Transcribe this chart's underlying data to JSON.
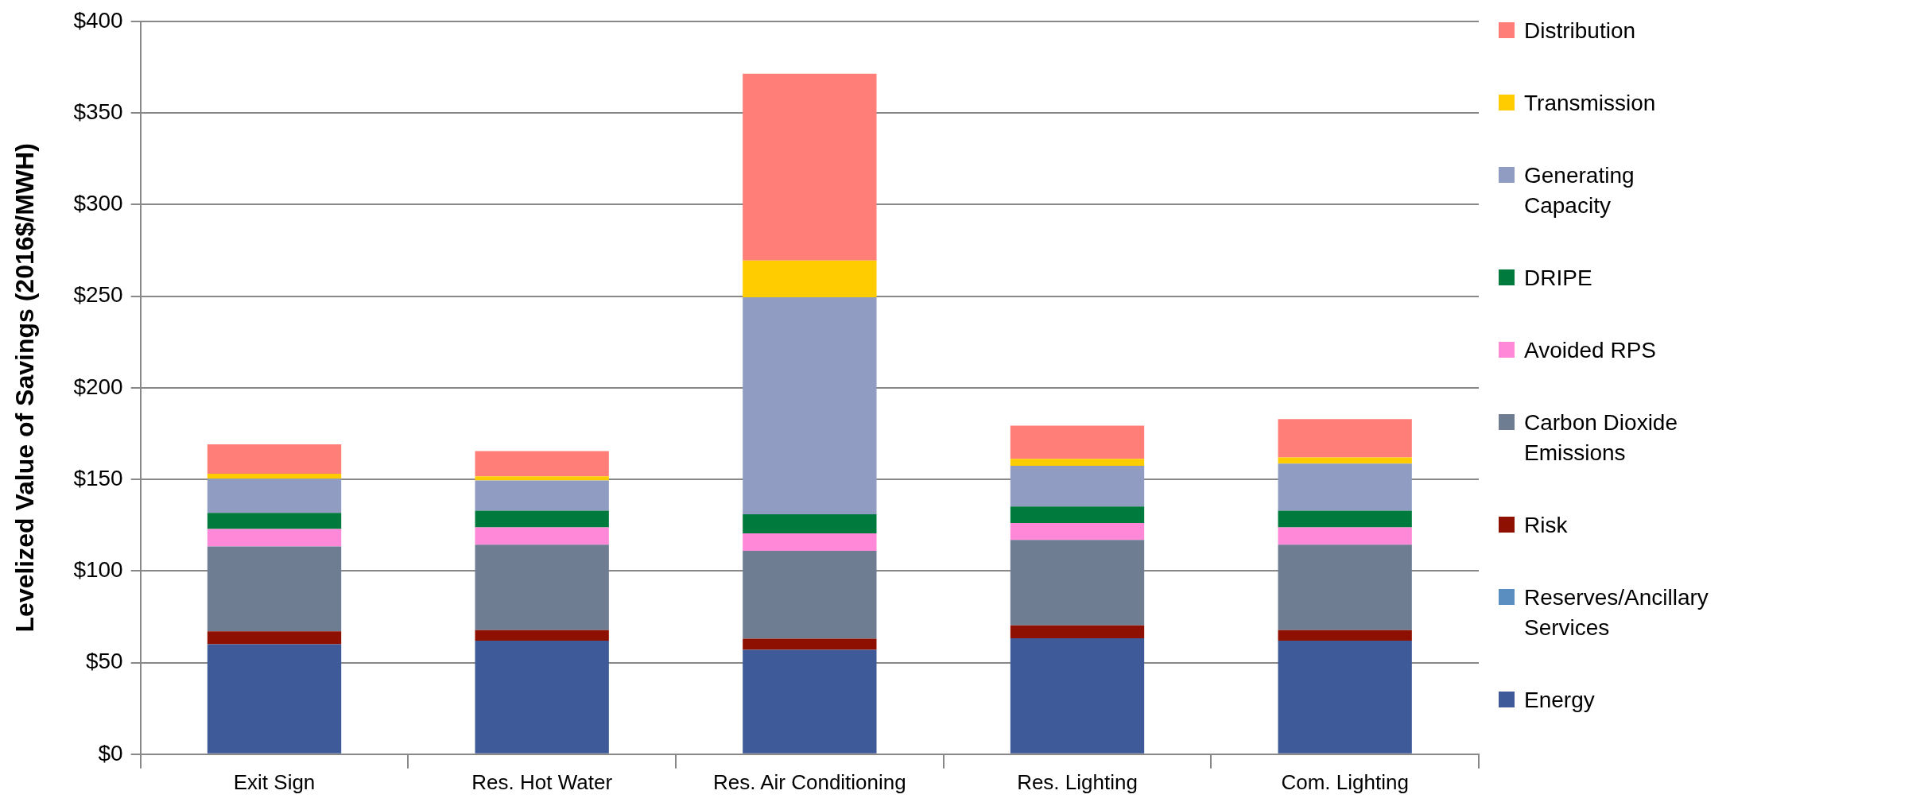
{
  "chart_data": {
    "type": "bar",
    "stacked": true,
    "ylabel": "Levelized Value of Savings (2016$/MWH)",
    "categories": [
      "Exit Sign",
      "Res. Hot Water",
      "Res. Air Conditioning",
      "Res. Lighting",
      "Com. Lighting"
    ],
    "series": [
      {
        "name": "Energy",
        "color": "#3f5a98",
        "values": [
          60,
          62,
          57,
          63.3,
          62
        ]
      },
      {
        "name": "Reserves/Ancillary Services",
        "color": "#5b8ec0",
        "values": [
          0,
          0,
          0,
          0,
          0
        ]
      },
      {
        "name": "Risk",
        "color": "#8e1000",
        "values": [
          7,
          5.7,
          6,
          7,
          5.7
        ]
      },
      {
        "name": "Carbon Dioxide Emissions",
        "color": "#6f7d93",
        "values": [
          46.4,
          46.6,
          48,
          46.6,
          46.6
        ]
      },
      {
        "name": "Avoided RPS",
        "color": "#ff88d8",
        "values": [
          9.5,
          9.5,
          9.5,
          9.3,
          9.5
        ]
      },
      {
        "name": "DRIPE",
        "color": "#007a3d",
        "values": [
          8.8,
          9.1,
          10.4,
          9,
          9.1
        ]
      },
      {
        "name": "Generating Capacity",
        "color": "#909cc2",
        "values": [
          18.6,
          16.5,
          118.5,
          22.2,
          25.7
        ]
      },
      {
        "name": "Transmission",
        "color": "#ffcc00",
        "values": [
          2.8,
          2.3,
          20,
          3.8,
          3.4
        ]
      },
      {
        "name": "Distribution",
        "color": "#ff7f78",
        "values": [
          16,
          13.7,
          102,
          18.1,
          20.9
        ]
      }
    ],
    "ylim": [
      0,
      400
    ],
    "yticks": [
      {
        "value": 0,
        "label": "$0"
      },
      {
        "value": 50,
        "label": "$50"
      },
      {
        "value": 100,
        "label": "$100"
      },
      {
        "value": 150,
        "label": "$150"
      },
      {
        "value": 200,
        "label": "$200"
      },
      {
        "value": 250,
        "label": "$250"
      },
      {
        "value": 300,
        "label": "$300"
      },
      {
        "value": 350,
        "label": "$350"
      },
      {
        "value": 400,
        "label": "$400"
      }
    ],
    "grid": "y",
    "legend": "right"
  }
}
